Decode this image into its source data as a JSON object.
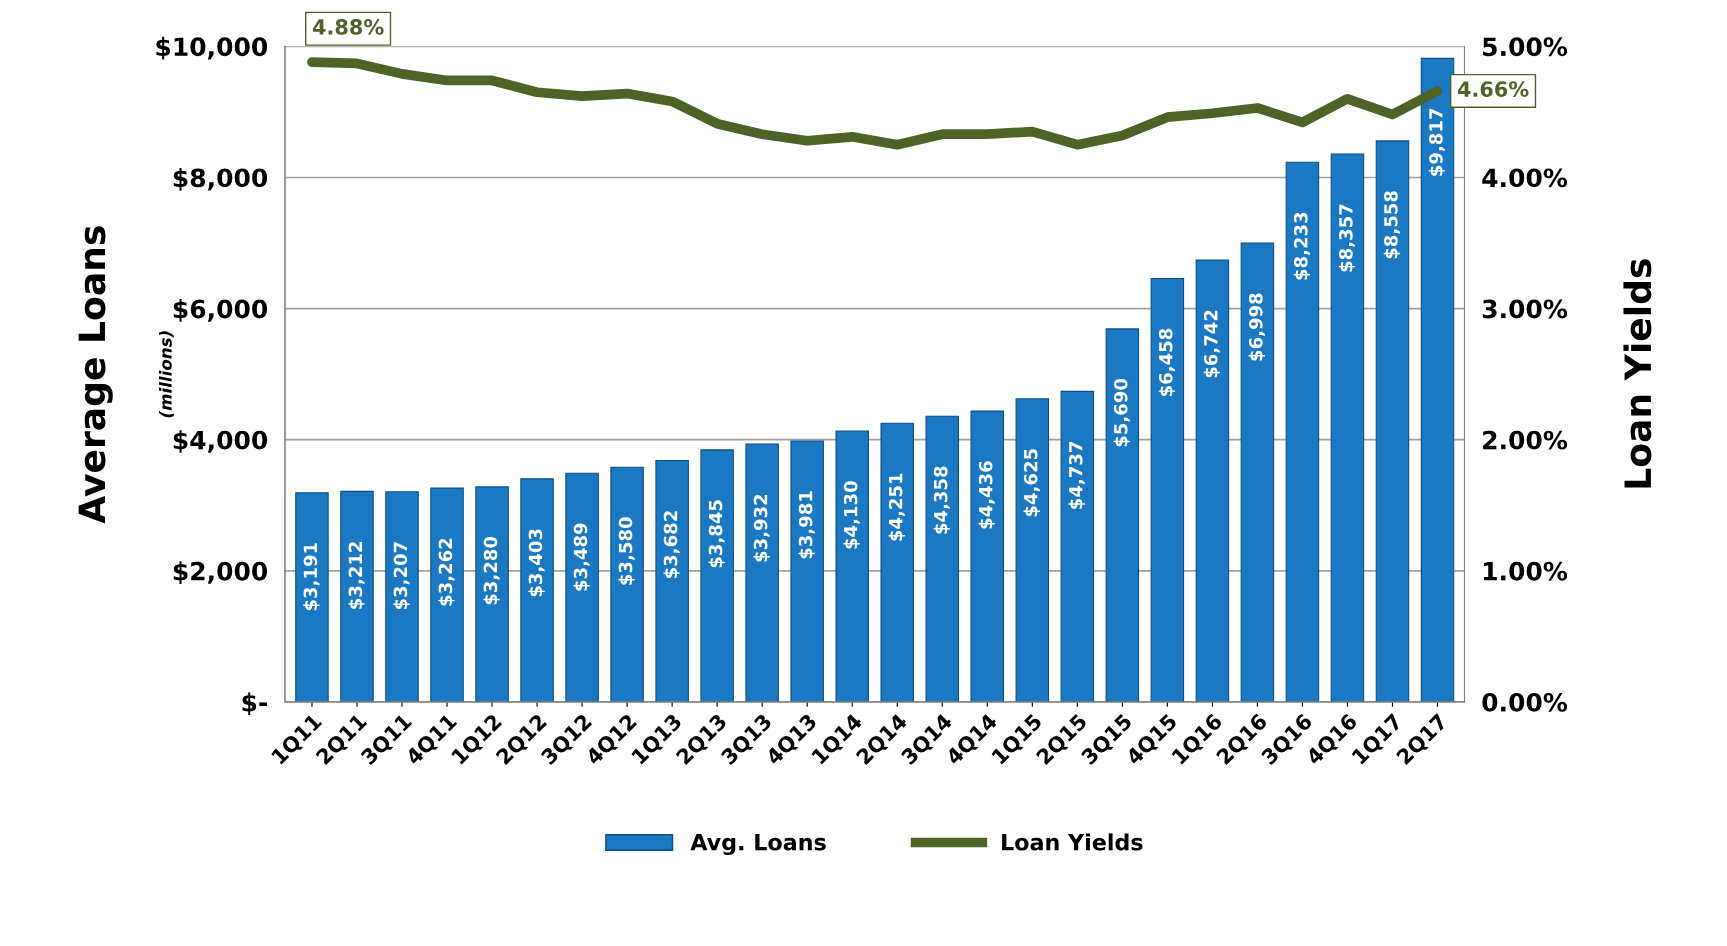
{
  "chart_data": {
    "type": "bar",
    "ylabel": "Average Loans",
    "y2label": "Loan Yields",
    "annotations": [
      "(millions)"
    ],
    "categories": [
      "1Q11",
      "2Q11",
      "3Q11",
      "4Q11",
      "1Q12",
      "2Q12",
      "3Q12",
      "4Q12",
      "1Q13",
      "2Q13",
      "3Q13",
      "4Q13",
      "1Q14",
      "2Q14",
      "3Q14",
      "4Q14",
      "1Q15",
      "2Q15",
      "3Q15",
      "4Q15",
      "1Q16",
      "2Q16",
      "3Q16",
      "4Q16",
      "1Q17",
      "2Q17"
    ],
    "series": [
      {
        "name": "Avg. Loans",
        "color": "#1b78c2",
        "values": [
          3191,
          3212,
          3207,
          3262,
          3280,
          3403,
          3489,
          3580,
          3682,
          3845,
          3932,
          3981,
          4130,
          4251,
          4358,
          4436,
          4625,
          4737,
          5690,
          6458,
          6742,
          6998,
          8233,
          8357,
          8558,
          9817
        ],
        "value_labels": [
          "$3,191",
          "$3,212",
          "$3,207",
          "$3,262",
          "$3,280",
          "$3,403",
          "$3,489",
          "$3,580",
          "$3,682",
          "$3,845",
          "$3,932",
          "$3,981",
          "$4,130",
          "$4,251",
          "$4,358",
          "$4,436",
          "$4,625",
          "$4,737",
          "$5,690",
          "$6,458",
          "$6,742",
          "$6,998",
          "$8,233",
          "$8,357",
          "$8,558",
          "$9,817"
        ]
      },
      {
        "name": "Loan Yields",
        "type": "line",
        "axis": "y2",
        "color": "#4f6228",
        "values": [
          4.88,
          4.87,
          4.79,
          4.74,
          4.74,
          4.65,
          4.62,
          4.64,
          4.58,
          4.41,
          4.33,
          4.28,
          4.31,
          4.25,
          4.33,
          4.33,
          4.35,
          4.25,
          4.32,
          4.46,
          4.49,
          4.53,
          4.42,
          4.6,
          4.48,
          4.66
        ],
        "value_labels": [
          "4.88%",
          null,
          null,
          null,
          null,
          null,
          null,
          null,
          null,
          null,
          null,
          null,
          null,
          null,
          null,
          null,
          null,
          null,
          null,
          null,
          null,
          null,
          null,
          null,
          null,
          "4.66%"
        ]
      }
    ],
    "ylim": [
      0,
      10000
    ],
    "yticks": [
      {
        "value": 0,
        "label": "$-"
      },
      {
        "value": 2000,
        "label": "$2,000"
      },
      {
        "value": 4000,
        "label": "$4,000"
      },
      {
        "value": 6000,
        "label": "$6,000"
      },
      {
        "value": 8000,
        "label": "$8,000"
      },
      {
        "value": 10000,
        "label": "$10,000"
      }
    ],
    "y2lim": [
      0,
      5
    ],
    "y2ticks": [
      {
        "value": 0,
        "label": "0.00%"
      },
      {
        "value": 1,
        "label": "1.00%"
      },
      {
        "value": 2,
        "label": "2.00%"
      },
      {
        "value": 3,
        "label": "3.00%"
      },
      {
        "value": 4,
        "label": "4.00%"
      },
      {
        "value": 5,
        "label": "5.00%"
      }
    ],
    "grid": "y",
    "legend": "bottom",
    "marker": "none",
    "line_style": "solid"
  }
}
